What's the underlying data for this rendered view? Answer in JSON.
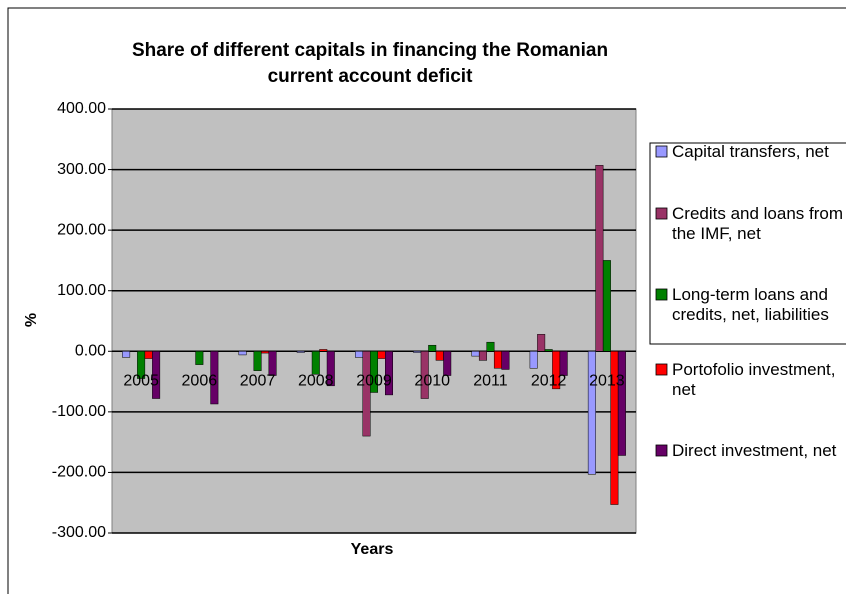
{
  "chart_data": {
    "type": "bar",
    "title": "Share of different capitals in financing the Romanian current account deficit",
    "x_label": "Years",
    "y_label": "%",
    "categories": [
      "2005",
      "2006",
      "2007",
      "2008",
      "2009",
      "2010",
      "2011",
      "2012",
      "2013"
    ],
    "series": [
      {
        "name": "Capital transfers, net",
        "color": "#9999ff",
        "values": [
          -10,
          0,
          -6,
          -2,
          -10,
          -2,
          -8,
          -28,
          -203
        ]
      },
      {
        "name": "Credits and loans from the IMF, net",
        "color": "#993366",
        "values": [
          0,
          0,
          0,
          0,
          -140,
          -78,
          -15,
          28,
          307
        ]
      },
      {
        "name": "Long-term loans and credits, net, liabilities",
        "color": "#008000",
        "values": [
          -45,
          -22,
          -32,
          -38,
          -68,
          10,
          15,
          3,
          150
        ]
      },
      {
        "name": "Portofolio investment, net",
        "color": "#ff0000",
        "values": [
          -12,
          0,
          -3,
          3,
          -12,
          -15,
          -28,
          -62,
          -253
        ]
      },
      {
        "name": "Direct investment, net",
        "color": "#660066",
        "values": [
          -78,
          -87,
          -40,
          -57,
          -72,
          -40,
          -30,
          -40,
          -172
        ]
      }
    ],
    "ylim": [
      -300,
      400
    ],
    "yticks": [
      {
        "value": -300,
        "label": "-300.00"
      },
      {
        "value": -200,
        "label": "-200.00"
      },
      {
        "value": -100,
        "label": "-100.00"
      },
      {
        "value": 0,
        "label": "0.00"
      },
      {
        "value": 100,
        "label": "100.00"
      },
      {
        "value": 200,
        "label": "200.00"
      },
      {
        "value": 300,
        "label": "300.00"
      },
      {
        "value": 400,
        "label": "400.00"
      }
    ],
    "grid": true,
    "legend": "right"
  }
}
